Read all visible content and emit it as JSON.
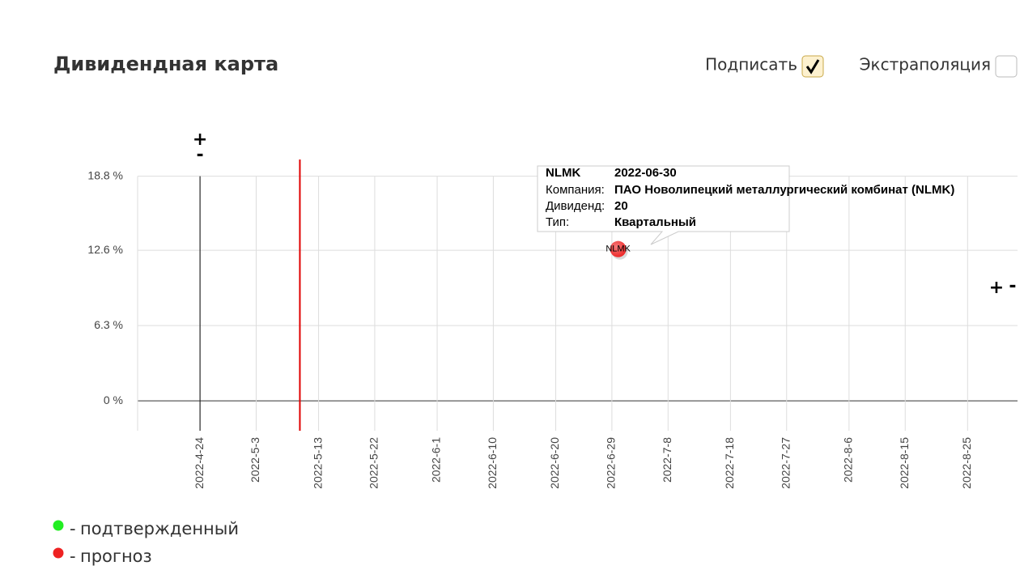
{
  "header": {
    "title": "Дивидендная карта"
  },
  "controls": [
    {
      "label": "Подписать",
      "checked": true
    },
    {
      "label": "Экстраполяция",
      "checked": false
    }
  ],
  "chart_data": {
    "type": "scatter",
    "x_zoom": [
      "+",
      "-"
    ],
    "y_zoom": [
      "+",
      "-"
    ],
    "xlim": [
      "2022-04-14",
      "2022-09-02"
    ],
    "xticks": [
      {
        "value": "2022-04-24",
        "label": "2022-4-24"
      },
      {
        "value": "2022-05-03",
        "label": "2022-5-3"
      },
      {
        "value": "2022-05-13",
        "label": "2022-5-13"
      },
      {
        "value": "2022-05-22",
        "label": "2022-5-22"
      },
      {
        "value": "2022-06-01",
        "label": "2022-6-1"
      },
      {
        "value": "2022-06-10",
        "label": "2022-6-10"
      },
      {
        "value": "2022-06-20",
        "label": "2022-6-20"
      },
      {
        "value": "2022-06-29",
        "label": "2022-6-29"
      },
      {
        "value": "2022-07-08",
        "label": "2022-7-8"
      },
      {
        "value": "2022-07-18",
        "label": "2022-7-18"
      },
      {
        "value": "2022-07-27",
        "label": "2022-7-27"
      },
      {
        "value": "2022-08-06",
        "label": "2022-8-6"
      },
      {
        "value": "2022-08-15",
        "label": "2022-8-15"
      },
      {
        "value": "2022-08-25",
        "label": "2022-8-25"
      }
    ],
    "ylim": [
      -2.5,
      20.2
    ],
    "yticks": [
      {
        "value": 0,
        "label": "0 %"
      },
      {
        "value": 6.3,
        "label": "6.3 %"
      },
      {
        "value": 12.6,
        "label": "12.6 %"
      },
      {
        "value": 18.8,
        "label": "18.8 %"
      }
    ],
    "grid": true,
    "markers": [
      {
        "x": "2022-04-24",
        "color": "#000000"
      },
      {
        "x": "2022-05-10",
        "color": "#e00000"
      }
    ],
    "series": [
      {
        "name": "подтвержденный",
        "color": "#22ee22",
        "x": [],
        "values": [],
        "labels": []
      },
      {
        "name": "прогноз",
        "color": "#ee2222",
        "x": [
          "2022-06-30"
        ],
        "values": [
          12.7
        ],
        "labels": [
          "NLMK"
        ]
      }
    ],
    "tooltip": {
      "ticker": "NLMK",
      "date": "2022-06-30",
      "rows": [
        [
          "Компания:",
          "ПАО Новолипецкий металлургический комбинат (NLMK)"
        ],
        [
          "Дивиденд:",
          20
        ],
        [
          "Тип:",
          "Квартальный"
        ]
      ]
    }
  }
}
